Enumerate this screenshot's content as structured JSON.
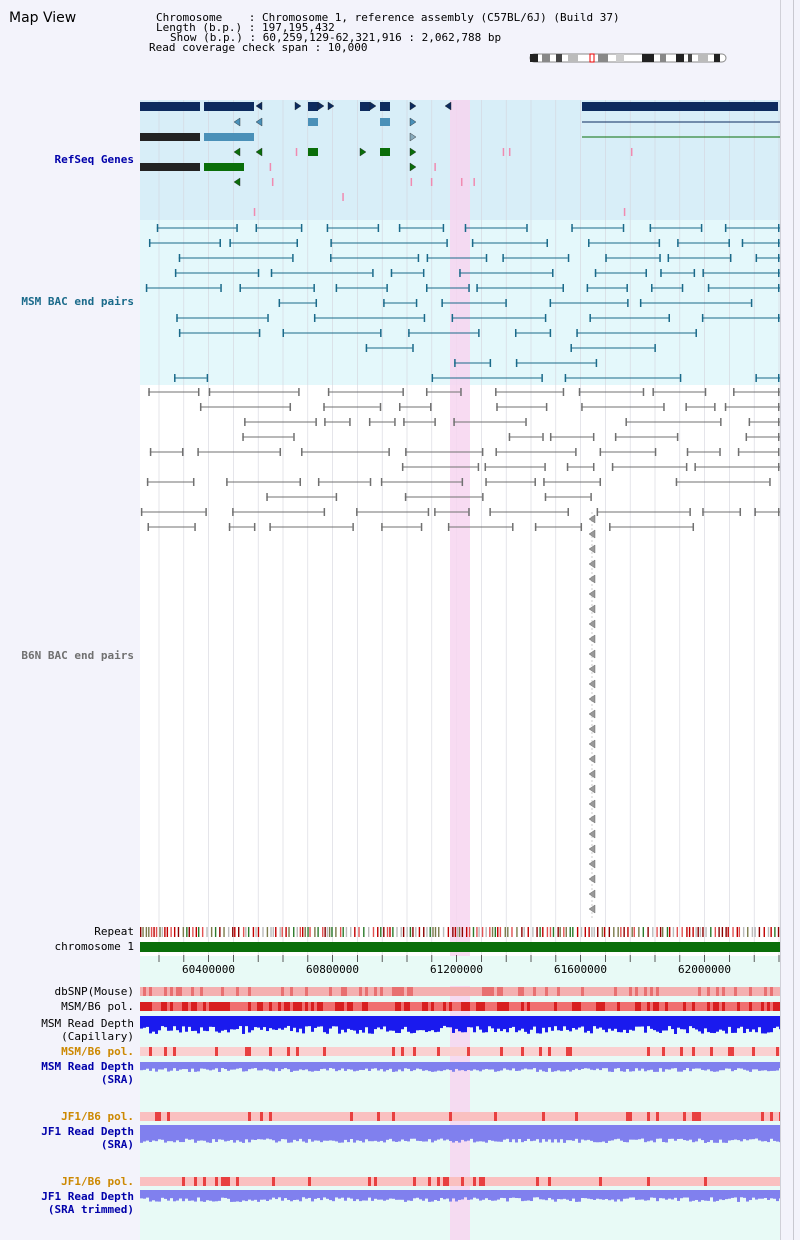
{
  "title": "Map View",
  "info": {
    "chromosome": "Chromosome    : Chromosome 1, reference assembly (C57BL/6J) (Build 37)",
    "length": "Length (b.p.) : 197,195,432",
    "show": "Show (b.p.) : 60,259,129-62,321,916 : 2,062,788 bp",
    "coverage": "Read coverage check span : 10,000"
  },
  "tracks": {
    "refseq": "RefSeq Genes",
    "msm_bac": "MSM BAC end pairs",
    "b6n_bac": "B6N BAC end pairs",
    "repeat": "Repeat",
    "chromosome": "chromosome 1",
    "dbsnp": "dbSNP(Mouse)",
    "msm_b6_pol_1": "MSM/B6 pol.",
    "msm_read_depth_cap_1": "MSM Read Depth",
    "msm_read_depth_cap_2": "(Capillary)",
    "msm_b6_pol_2": "MSM/B6 pol.",
    "msm_read_depth_sra_1": "MSM Read Depth",
    "msm_read_depth_sra_2": "(SRA)",
    "jf1_b6_pol_1": "JF1/B6 pol.",
    "jf1_read_depth_sra_1": "JF1 Read Depth",
    "jf1_read_depth_sra_2": "(SRA)",
    "jf1_b6_pol_2": "JF1/B6 pol.",
    "jf1_read_depth_trim_1": "JF1 Read Depth",
    "jf1_read_depth_trim_2": "(SRA trimmed)"
  },
  "axis": {
    "ticks": [
      "60400000",
      "60800000",
      "61200000",
      "61600000",
      "62000000"
    ]
  },
  "colors": {
    "refseq_dark": "#0d2b5e",
    "refseq_mid": "#4a90b8",
    "refseq_green": "#0a6e0a",
    "msm_bac": "#1a6a8a",
    "b6n_bac": "#707070",
    "highlight": "#f7d5f0",
    "chromosome": "#0a6e0a",
    "depth_blue": "#1a1aee",
    "depth_light": "#8080ee",
    "pol_red": "#e84040",
    "label_blue": "#0000aa",
    "label_teal": "#1a6a8a",
    "label_orange": "#cc8800"
  }
}
